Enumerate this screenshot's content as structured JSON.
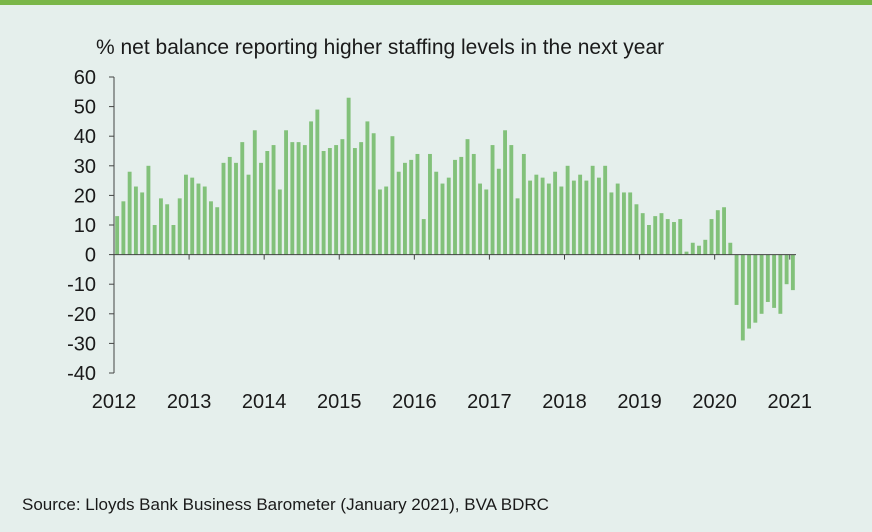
{
  "chart_data": {
    "type": "bar",
    "title": "% net balance reporting higher staffing levels in the next year",
    "source": "Source: Lloyds Bank Business Barometer (January 2021), BVA BDRC",
    "ylim": [
      -40,
      60
    ],
    "yticks": [
      "60",
      "50",
      "40",
      "30",
      "20",
      "10",
      "0",
      "-10",
      "-20",
      "-30",
      "-40"
    ],
    "x_tick_labels": [
      "2012",
      "2013",
      "2014",
      "2015",
      "2016",
      "2017",
      "2018",
      "2019",
      "2020",
      "2021"
    ],
    "grid": false,
    "bar_color": "#82c17a",
    "categories": [
      "2012-01",
      "2012-02",
      "2012-03",
      "2012-04",
      "2012-05",
      "2012-06",
      "2012-07",
      "2012-08",
      "2012-09",
      "2012-10",
      "2012-11",
      "2012-12",
      "2013-01",
      "2013-02",
      "2013-03",
      "2013-04",
      "2013-05",
      "2013-06",
      "2013-07",
      "2013-08",
      "2013-09",
      "2013-10",
      "2013-11",
      "2013-12",
      "2014-01",
      "2014-02",
      "2014-03",
      "2014-04",
      "2014-05",
      "2014-06",
      "2014-07",
      "2014-08",
      "2014-09",
      "2014-10",
      "2014-11",
      "2014-12",
      "2015-01",
      "2015-02",
      "2015-03",
      "2015-04",
      "2015-05",
      "2015-06",
      "2015-07",
      "2015-08",
      "2015-09",
      "2015-10",
      "2015-11",
      "2015-12",
      "2016-01",
      "2016-02",
      "2016-03",
      "2016-04",
      "2016-05",
      "2016-06",
      "2016-07",
      "2016-08",
      "2016-09",
      "2016-10",
      "2016-11",
      "2016-12",
      "2017-01",
      "2017-02",
      "2017-03",
      "2017-04",
      "2017-05",
      "2017-06",
      "2017-07",
      "2017-08",
      "2017-09",
      "2017-10",
      "2017-11",
      "2017-12",
      "2018-01",
      "2018-02",
      "2018-03",
      "2018-04",
      "2018-05",
      "2018-06",
      "2018-07",
      "2018-08",
      "2018-09",
      "2018-10",
      "2018-11",
      "2018-12",
      "2019-01",
      "2019-02",
      "2019-03",
      "2019-04",
      "2019-05",
      "2019-06",
      "2019-07",
      "2019-08",
      "2019-09",
      "2019-10",
      "2019-11",
      "2019-12",
      "2020-01",
      "2020-02",
      "2020-03",
      "2020-04",
      "2020-05",
      "2020-06",
      "2020-07",
      "2020-08",
      "2020-09",
      "2020-10",
      "2020-11",
      "2020-12",
      "2021-01"
    ],
    "values": [
      13,
      18,
      28,
      23,
      21,
      30,
      10,
      19,
      17,
      10,
      19,
      27,
      26,
      24,
      23,
      18,
      16,
      31,
      33,
      31,
      38,
      27,
      42,
      31,
      35,
      37,
      22,
      42,
      38,
      38,
      37,
      45,
      49,
      35,
      36,
      37,
      39,
      53,
      36,
      38,
      45,
      41,
      22,
      23,
      40,
      28,
      31,
      32,
      34,
      12,
      34,
      28,
      24,
      26,
      32,
      33,
      39,
      34,
      24,
      22,
      37,
      29,
      42,
      37,
      19,
      34,
      25,
      27,
      26,
      24,
      28,
      23,
      30,
      25,
      27,
      25,
      30,
      26,
      30,
      21,
      24,
      21,
      21,
      17,
      14,
      10,
      13,
      14,
      12,
      11,
      12,
      1,
      4,
      3,
      5,
      12,
      15,
      16,
      4,
      -17,
      -29,
      -25,
      -23,
      -20,
      -16,
      -18,
      -20,
      -10,
      -12
    ]
  }
}
